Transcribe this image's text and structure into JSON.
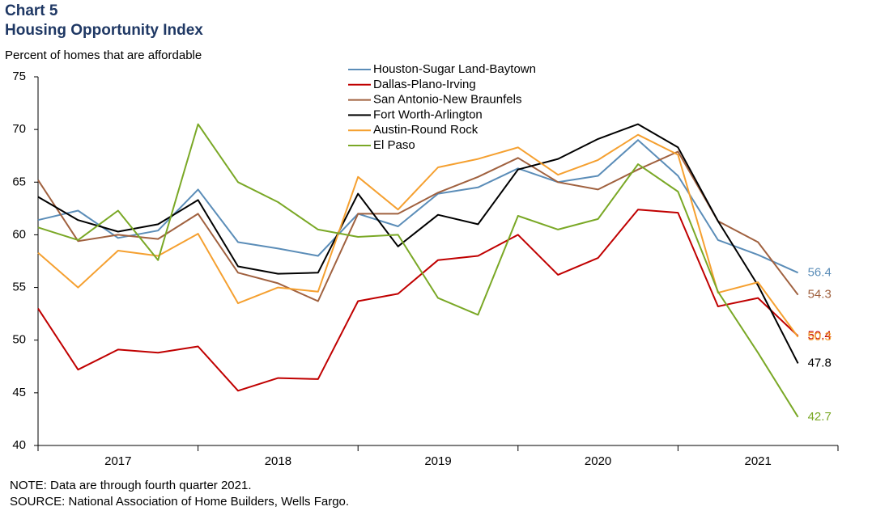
{
  "chart_data": {
    "type": "line",
    "title": "Chart 5",
    "subtitle": "Housing Opportunity Index",
    "y_label": "Percent of homes that are affordable",
    "notes": [
      "NOTE: Data are through fourth quarter 2021.",
      "SOURCE: National Association of Home Builders, Wells Fargo."
    ],
    "categories": [
      "2017",
      null,
      null,
      null,
      "2018",
      null,
      null,
      null,
      "2019",
      null,
      null,
      null,
      "2020",
      null,
      null,
      null,
      "2021",
      null,
      null,
      null
    ],
    "ylim": [
      40,
      75
    ],
    "yticks": [
      40,
      45,
      50,
      55,
      60,
      65,
      70,
      75
    ],
    "grid": false,
    "legend": "top",
    "series": [
      {
        "name": "Houston-Sugar Land-Baytown",
        "color": "#5b8db8",
        "values": [
          61.4,
          62.3,
          59.7,
          60.4,
          64.3,
          59.3,
          58.7,
          58.0,
          62.0,
          60.8,
          63.9,
          64.5,
          66.3,
          65.0,
          65.6,
          69.0,
          65.6,
          59.5,
          58.1,
          56.4
        ]
      },
      {
        "name": "Dallas-Plano-Irving",
        "color": "#c00000",
        "values": [
          53.0,
          47.2,
          49.1,
          48.8,
          49.4,
          45.2,
          46.4,
          46.3,
          53.7,
          54.4,
          57.6,
          58.0,
          60.0,
          56.2,
          57.8,
          62.4,
          62.1,
          53.2,
          54.0,
          50.4
        ]
      },
      {
        "name": "San Antonio-New Braunfels",
        "color": "#a0613f",
        "values": [
          65.2,
          59.4,
          60.0,
          59.6,
          62.0,
          56.4,
          55.4,
          53.7,
          62.0,
          62.0,
          64.0,
          65.5,
          67.3,
          65.0,
          64.3,
          66.2,
          67.9,
          61.3,
          59.3,
          54.3
        ]
      },
      {
        "name": "Fort Worth-Arlington",
        "color": "#000000",
        "values": [
          63.6,
          61.4,
          60.3,
          61.0,
          63.3,
          57.0,
          56.3,
          56.4,
          63.9,
          58.9,
          61.9,
          61.0,
          66.2,
          67.2,
          69.1,
          70.5,
          68.3,
          61.3,
          55.2,
          47.8
        ]
      },
      {
        "name": "Austin-Round Rock",
        "color": "#f5a030",
        "values": [
          58.3,
          55.0,
          58.5,
          58.0,
          60.1,
          53.5,
          55.0,
          54.6,
          65.5,
          62.4,
          66.4,
          67.2,
          68.3,
          65.7,
          67.1,
          69.5,
          67.6,
          54.5,
          55.5,
          50.3
        ]
      },
      {
        "name": "El Paso",
        "color": "#7aa826",
        "values": [
          60.7,
          59.5,
          62.3,
          57.6,
          70.5,
          65.0,
          63.1,
          60.5,
          59.8,
          60.0,
          54.0,
          52.4,
          61.8,
          60.5,
          61.5,
          66.7,
          64.1,
          54.6,
          48.8,
          42.7
        ]
      }
    ]
  }
}
